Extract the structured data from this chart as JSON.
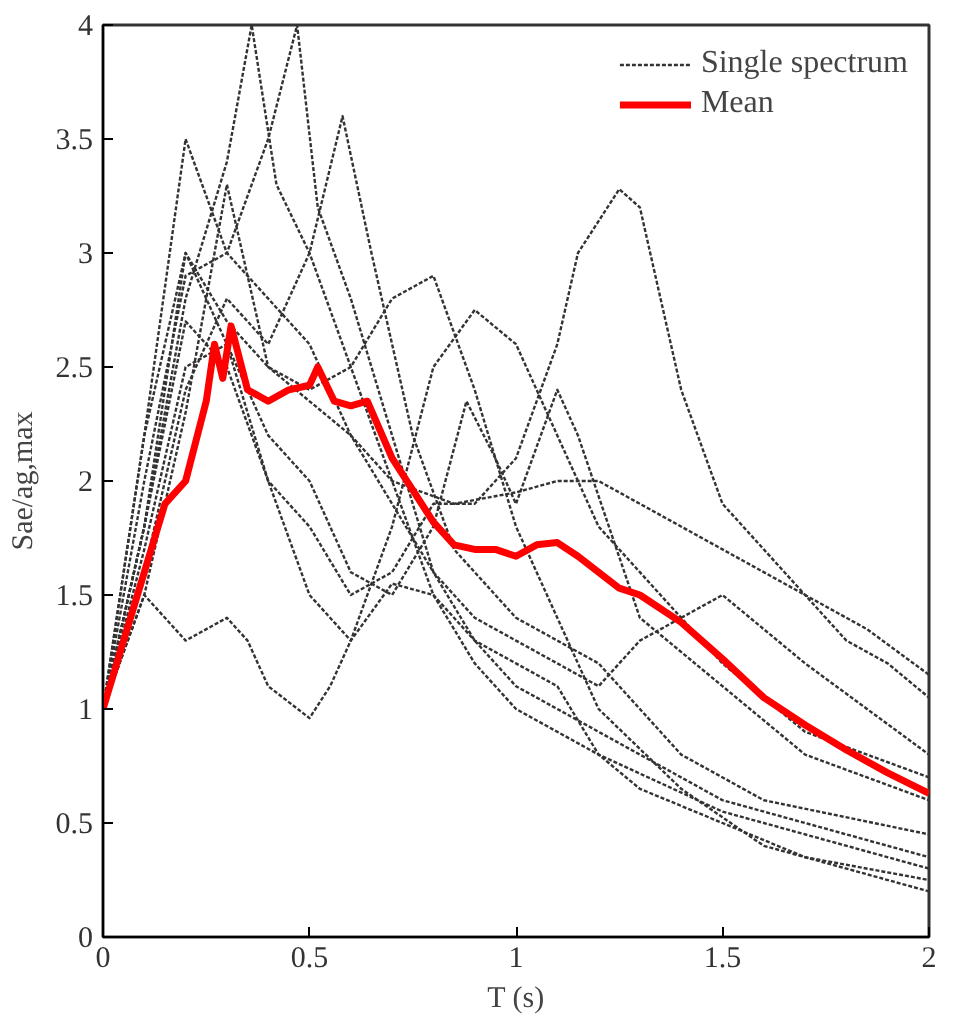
{
  "chart_data": {
    "type": "line",
    "xlabel": "T (s)",
    "ylabel": "Sae/ag,max",
    "xlim": [
      0,
      2
    ],
    "ylim": [
      0,
      4
    ],
    "xticks": [
      0,
      0.5,
      1,
      1.5,
      2
    ],
    "yticks": [
      0,
      0.5,
      1,
      1.5,
      2,
      2.5,
      3,
      3.5,
      4
    ],
    "grid": false,
    "legend": "top right",
    "marker": "none",
    "series": [
      {
        "name": "Single spectrum",
        "color": "#333333",
        "line_style": "dotted",
        "x": [
          0,
          0.1,
          0.2,
          0.3,
          0.4,
          0.5,
          0.6,
          0.7,
          0.8,
          0.9,
          1.0,
          1.1,
          1.15,
          1.25,
          1.3,
          1.4,
          1.5,
          1.6,
          1.7,
          1.8,
          1.9,
          2.0
        ],
        "values": [
          1,
          1.8,
          2.7,
          2.5,
          2.0,
          1.8,
          1.5,
          1.6,
          1.9,
          1.9,
          2.1,
          2.6,
          3.0,
          3.28,
          3.2,
          2.4,
          1.9,
          1.7,
          1.5,
          1.3,
          1.2,
          1.05
        ]
      },
      {
        "color": "#333333",
        "line_style": "dotted",
        "x": [
          0,
          0.1,
          0.2,
          0.3,
          0.35,
          0.4,
          0.5,
          0.55,
          0.6,
          0.7,
          0.8,
          0.9,
          1.0,
          1.1,
          1.2,
          1.3,
          1.5,
          1.7,
          2.0
        ],
        "values": [
          1,
          1.5,
          1.3,
          1.4,
          1.3,
          1.1,
          0.96,
          1.1,
          1.3,
          1.55,
          1.5,
          1.3,
          1.2,
          1.1,
          0.8,
          0.65,
          0.5,
          0.35,
          0.25
        ]
      },
      {
        "color": "#333333",
        "line_style": "dotted",
        "x": [
          0,
          0.1,
          0.2,
          0.3,
          0.36,
          0.42,
          0.5,
          0.6,
          0.7,
          0.8,
          0.9,
          1.0,
          1.2,
          1.5,
          2.0
        ],
        "values": [
          1,
          1.8,
          2.8,
          3.4,
          4.0,
          3.3,
          3.0,
          2.5,
          2.0,
          1.5,
          1.2,
          1.0,
          0.8,
          0.55,
          0.3
        ]
      },
      {
        "color": "#333333",
        "line_style": "dotted",
        "x": [
          0,
          0.1,
          0.2,
          0.3,
          0.4,
          0.47,
          0.52,
          0.6,
          0.7,
          0.8,
          0.9,
          1.0,
          1.2,
          1.5,
          2.0
        ],
        "values": [
          1,
          2.0,
          2.9,
          3.0,
          3.5,
          4.0,
          3.2,
          2.8,
          2.2,
          1.6,
          1.3,
          1.1,
          0.9,
          0.6,
          0.35
        ]
      },
      {
        "color": "#333333",
        "line_style": "dotted",
        "x": [
          0,
          0.1,
          0.2,
          0.3,
          0.4,
          0.5,
          0.58,
          0.65,
          0.75,
          0.85,
          1.0,
          1.2,
          1.4,
          1.6,
          2.0
        ],
        "values": [
          1,
          1.6,
          2.4,
          2.8,
          2.6,
          3.0,
          3.6,
          3.0,
          2.2,
          1.7,
          1.4,
          1.2,
          0.8,
          0.6,
          0.45
        ]
      },
      {
        "color": "#333333",
        "line_style": "dotted",
        "x": [
          0,
          0.1,
          0.2,
          0.3,
          0.4,
          0.5,
          0.6,
          0.7,
          0.8,
          0.88,
          0.95,
          1.0,
          1.1,
          1.15,
          1.3,
          1.5,
          1.7,
          2.0
        ],
        "values": [
          1,
          1.7,
          2.5,
          2.6,
          2.2,
          2.0,
          1.6,
          1.5,
          1.8,
          2.35,
          2.1,
          1.9,
          2.4,
          2.2,
          1.4,
          1.1,
          0.8,
          0.6
        ]
      },
      {
        "color": "#333333",
        "line_style": "dotted",
        "x": [
          0,
          0.1,
          0.2,
          0.3,
          0.4,
          0.5,
          0.6,
          0.7,
          0.8,
          0.9,
          1.0,
          1.1,
          1.2,
          1.35,
          1.5,
          1.7,
          2.0
        ],
        "values": [
          1,
          2.2,
          3.0,
          2.6,
          2.0,
          1.5,
          1.3,
          1.8,
          2.5,
          2.75,
          2.6,
          2.2,
          1.8,
          1.5,
          1.2,
          0.9,
          0.7
        ]
      },
      {
        "color": "#333333",
        "line_style": "dotted",
        "x": [
          0,
          0.1,
          0.2,
          0.3,
          0.4,
          0.6,
          0.7,
          0.85,
          1.0,
          1.1,
          1.2,
          1.3,
          1.5,
          1.7,
          1.85,
          2.0
        ],
        "values": [
          1,
          1.5,
          2.3,
          3.3,
          2.5,
          2.2,
          2.0,
          1.9,
          1.95,
          2.0,
          2.0,
          1.9,
          1.7,
          1.5,
          1.35,
          1.15
        ]
      },
      {
        "color": "#333333",
        "line_style": "dotted",
        "x": [
          0,
          0.1,
          0.2,
          0.3,
          0.4,
          0.5,
          0.6,
          0.7,
          0.8,
          0.9,
          1.0,
          1.1,
          1.2,
          1.4,
          1.6,
          2.0
        ],
        "values": [
          1,
          1.8,
          3.0,
          2.7,
          2.5,
          2.4,
          2.5,
          2.8,
          2.9,
          2.4,
          1.8,
          1.4,
          1.0,
          0.65,
          0.4,
          0.2
        ]
      },
      {
        "color": "#333333",
        "line_style": "dotted",
        "x": [
          0,
          0.1,
          0.2,
          0.3,
          0.4,
          0.5,
          0.6,
          0.7,
          0.8,
          0.9,
          1.0,
          1.2,
          1.3,
          1.5,
          1.7,
          2.0
        ],
        "values": [
          1,
          2.2,
          3.5,
          3.0,
          2.8,
          2.6,
          2.2,
          1.9,
          1.6,
          1.4,
          1.3,
          1.1,
          1.3,
          1.5,
          1.2,
          0.8
        ]
      },
      {
        "name": "Mean",
        "color": "#ff0000",
        "line_style": "solid",
        "x": [
          0,
          0.05,
          0.1,
          0.15,
          0.2,
          0.25,
          0.27,
          0.29,
          0.31,
          0.35,
          0.4,
          0.45,
          0.5,
          0.52,
          0.56,
          0.6,
          0.64,
          0.7,
          0.8,
          0.85,
          0.9,
          0.95,
          1.0,
          1.05,
          1.1,
          1.15,
          1.25,
          1.3,
          1.4,
          1.5,
          1.6,
          1.7,
          1.8,
          1.9,
          2.0
        ],
        "values": [
          1.0,
          1.3,
          1.6,
          1.9,
          2.0,
          2.35,
          2.6,
          2.45,
          2.68,
          2.4,
          2.35,
          2.4,
          2.42,
          2.5,
          2.35,
          2.33,
          2.35,
          2.1,
          1.82,
          1.72,
          1.7,
          1.7,
          1.67,
          1.72,
          1.73,
          1.67,
          1.53,
          1.5,
          1.38,
          1.22,
          1.05,
          0.93,
          0.82,
          0.72,
          0.63
        ]
      }
    ]
  }
}
